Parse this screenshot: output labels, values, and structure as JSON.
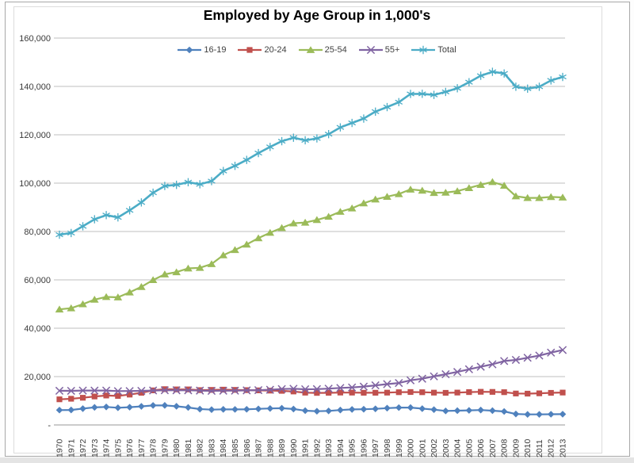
{
  "chart_data": {
    "type": "line",
    "title": "Employed by Age Group in 1,000's",
    "xlabel": "",
    "ylabel": "",
    "ylim": [
      0,
      160000
    ],
    "ytick_step": 20000,
    "ytick_labels": [
      "-",
      "20,000",
      "40,000",
      "60,000",
      "80,000",
      "100,000",
      "120,000",
      "140,000",
      "160,000"
    ],
    "grid": true,
    "legend_position": "top",
    "x": [
      1970,
      1971,
      1972,
      1973,
      1974,
      1975,
      1976,
      1977,
      1978,
      1979,
      1980,
      1981,
      1982,
      1983,
      1984,
      1985,
      1986,
      1987,
      1988,
      1989,
      1990,
      1991,
      1992,
      1993,
      1994,
      1995,
      1996,
      1997,
      1998,
      1999,
      2000,
      2001,
      2002,
      2003,
      2004,
      2005,
      2006,
      2007,
      2008,
      2009,
      2010,
      2011,
      2012,
      2013
    ],
    "series": [
      {
        "name": "16-19",
        "marker": "diamond",
        "color": "#4F81BD",
        "values": [
          6144,
          6208,
          6746,
          7271,
          7448,
          7104,
          7336,
          7688,
          8070,
          8083,
          7710,
          7225,
          6549,
          6342,
          6444,
          6434,
          6472,
          6640,
          6805,
          6920,
          6581,
          5906,
          5669,
          5805,
          6161,
          6419,
          6500,
          6661,
          6958,
          7172,
          7189,
          6740,
          6332,
          5793,
          5907,
          6028,
          6162,
          5911,
          5573,
          4532,
          4364,
          4370,
          4426,
          4454
        ]
      },
      {
        "name": "20-24",
        "marker": "square",
        "color": "#C0504D",
        "values": [
          10597,
          10832,
          11246,
          11777,
          12173,
          12000,
          12550,
          13300,
          14300,
          14800,
          14700,
          14700,
          14400,
          14500,
          14600,
          14500,
          14400,
          14300,
          14200,
          14100,
          13839,
          13354,
          13248,
          13294,
          13390,
          13373,
          13310,
          13316,
          13363,
          13532,
          13616,
          13530,
          13364,
          13282,
          13392,
          13583,
          13709,
          13666,
          13548,
          13003,
          12946,
          13076,
          13273,
          13395
        ]
      },
      {
        "name": "25-54",
        "marker": "triangle",
        "color": "#9BBB59",
        "values": [
          47800,
          48300,
          49950,
          51850,
          52950,
          52800,
          54850,
          57100,
          59950,
          62300,
          63200,
          64750,
          65000,
          66550,
          70200,
          72400,
          74650,
          77250,
          79500,
          81500,
          83400,
          83700,
          84800,
          86150,
          88200,
          89600,
          91700,
          93300,
          94400,
          95500,
          97400,
          96950,
          96000,
          96100,
          96700,
          98000,
          99300,
          100500,
          99000,
          94600,
          93900,
          93900,
          94300,
          94100
        ]
      },
      {
        "name": "55+",
        "marker": "x",
        "color": "#8064A2",
        "values": [
          14131,
          14114,
          14232,
          14216,
          14240,
          13987,
          14028,
          14107,
          14245,
          14332,
          14324,
          14318,
          14202,
          14094,
          14154,
          14177,
          14283,
          14403,
          14563,
          14848,
          14976,
          14763,
          14817,
          15004,
          15299,
          15495,
          15853,
          16376,
          16875,
          17339,
          18450,
          19120,
          20093,
          20980,
          21920,
          23030,
          24078,
          25080,
          26440,
          26900,
          27800,
          28700,
          29900,
          31000
        ]
      },
      {
        "name": "Total",
        "marker": "asterisk",
        "color": "#4BACC6",
        "values": [
          78678,
          79367,
          82153,
          85064,
          86794,
          85846,
          88752,
          92017,
          96048,
          98824,
          99303,
          100397,
          99526,
          100834,
          105005,
          107150,
          109597,
          112440,
          114968,
          117342,
          118793,
          117718,
          118492,
          120259,
          123060,
          124900,
          126708,
          129558,
          131463,
          133488,
          136891,
          136933,
          136485,
          137736,
          139252,
          141730,
          144427,
          146047,
          145362,
          139877,
          139064,
          139869,
          142469,
          143929
        ]
      }
    ]
  }
}
